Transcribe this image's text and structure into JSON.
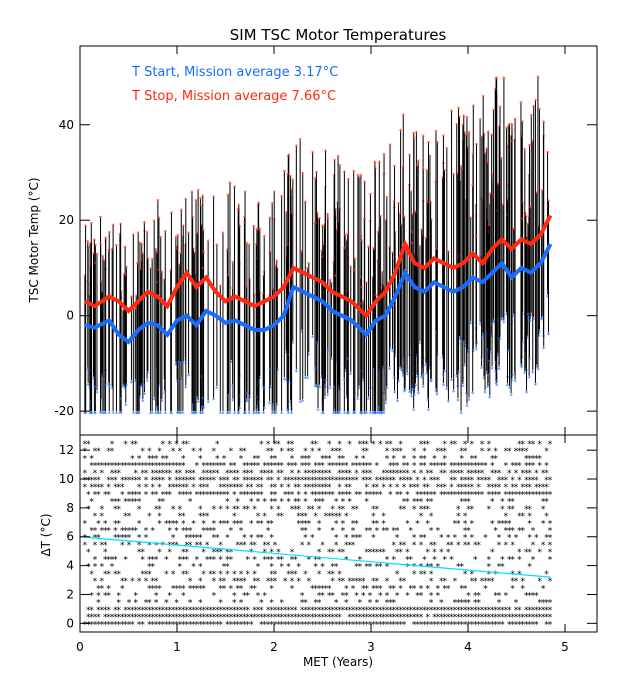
{
  "chart_data": [
    {
      "type": "line",
      "title": "SIM TSC Motor Temperatures",
      "xlabel": "",
      "ylabel": "TSC Motor Temp (°C)",
      "xlim": [
        0,
        5.33
      ],
      "ylim": [
        -25,
        56.5
      ],
      "yticks": [
        "-20",
        "0",
        "20",
        "40"
      ],
      "legend_placement": "top-left",
      "legend": [
        {
          "label": "T Start, Mission average  3.17°C",
          "color": "#1a6cff"
        },
        {
          "label": "T Stop, Mission average  7.66°C",
          "color": "#ff2a10"
        }
      ],
      "raw_range": {
        "min": -20,
        "max": 50,
        "color": "#000000"
      },
      "series": [
        {
          "name": "T Start running average",
          "color": "#1a6cff",
          "x": [
            0.05,
            0.15,
            0.3,
            0.4,
            0.5,
            0.6,
            0.7,
            0.8,
            0.9,
            1.0,
            1.1,
            1.2,
            1.3,
            1.4,
            1.5,
            1.6,
            1.7,
            1.8,
            1.9,
            2.0,
            2.1,
            2.2,
            2.3,
            2.4,
            2.5,
            2.6,
            2.7,
            2.8,
            2.9,
            2.95,
            3.05,
            3.15,
            3.25,
            3.35,
            3.45,
            3.55,
            3.65,
            3.75,
            3.85,
            3.95,
            4.05,
            4.15,
            4.25,
            4.35,
            4.45,
            4.55,
            4.65,
            4.75,
            4.85
          ],
          "y": [
            -2,
            -2.5,
            -1,
            -4,
            -5.5,
            -3,
            -1.5,
            -2,
            -4,
            -1,
            0,
            -2,
            1,
            0,
            -1.5,
            -1,
            -2,
            -3,
            -3,
            -2,
            0,
            6,
            5,
            4,
            3,
            1,
            0,
            -1,
            -3,
            -4,
            -1,
            0,
            4,
            9,
            6,
            5,
            7,
            6,
            5,
            6,
            8,
            7,
            9,
            11,
            8,
            10,
            9,
            11,
            15
          ]
        },
        {
          "name": "T Stop running average",
          "color": "#ff2a10",
          "x": [
            0.05,
            0.15,
            0.3,
            0.4,
            0.5,
            0.6,
            0.7,
            0.8,
            0.9,
            1.0,
            1.1,
            1.2,
            1.3,
            1.4,
            1.5,
            1.6,
            1.7,
            1.8,
            1.9,
            2.0,
            2.1,
            2.2,
            2.3,
            2.4,
            2.5,
            2.6,
            2.7,
            2.8,
            2.9,
            2.95,
            3.05,
            3.15,
            3.25,
            3.35,
            3.45,
            3.55,
            3.65,
            3.75,
            3.85,
            3.95,
            4.05,
            4.15,
            4.25,
            4.35,
            4.45,
            4.55,
            4.65,
            4.75,
            4.85
          ],
          "y": [
            3,
            2,
            4,
            3,
            1,
            3,
            5,
            4,
            2,
            6,
            9,
            6,
            8,
            5,
            3,
            4,
            3,
            2,
            3,
            4,
            6,
            10,
            9,
            8,
            7,
            5,
            4,
            3,
            1,
            0,
            3,
            5,
            9,
            15,
            11,
            10,
            12,
            11,
            10,
            11,
            13,
            11,
            14,
            16,
            14,
            16,
            15,
            17,
            21
          ]
        }
      ]
    },
    {
      "type": "scatter",
      "xlabel": "MET (Years)",
      "ylabel": "ΔT (°C)",
      "xlim": [
        0,
        5.33
      ],
      "ylim": [
        -0.6,
        13.05
      ],
      "xticks": [
        "0",
        "1",
        "2",
        "3",
        "4",
        "5"
      ],
      "yticks": [
        "0",
        "2",
        "4",
        "6",
        "8",
        "10",
        "12"
      ],
      "points_levels": [
        0,
        0.5,
        1,
        1.5,
        2,
        2.5,
        3,
        3.5,
        4,
        4.5,
        5,
        5.5,
        6,
        6.5,
        7,
        7.5,
        8,
        8.5,
        9,
        9.5,
        10,
        10.5,
        11,
        11.5,
        12,
        12.5
      ],
      "x_extent": [
        0.05,
        4.85
      ],
      "fit_line": {
        "x": [
          0,
          4.85
        ],
        "y": [
          6,
          3.2
        ],
        "color": "#00e0ff"
      }
    }
  ]
}
